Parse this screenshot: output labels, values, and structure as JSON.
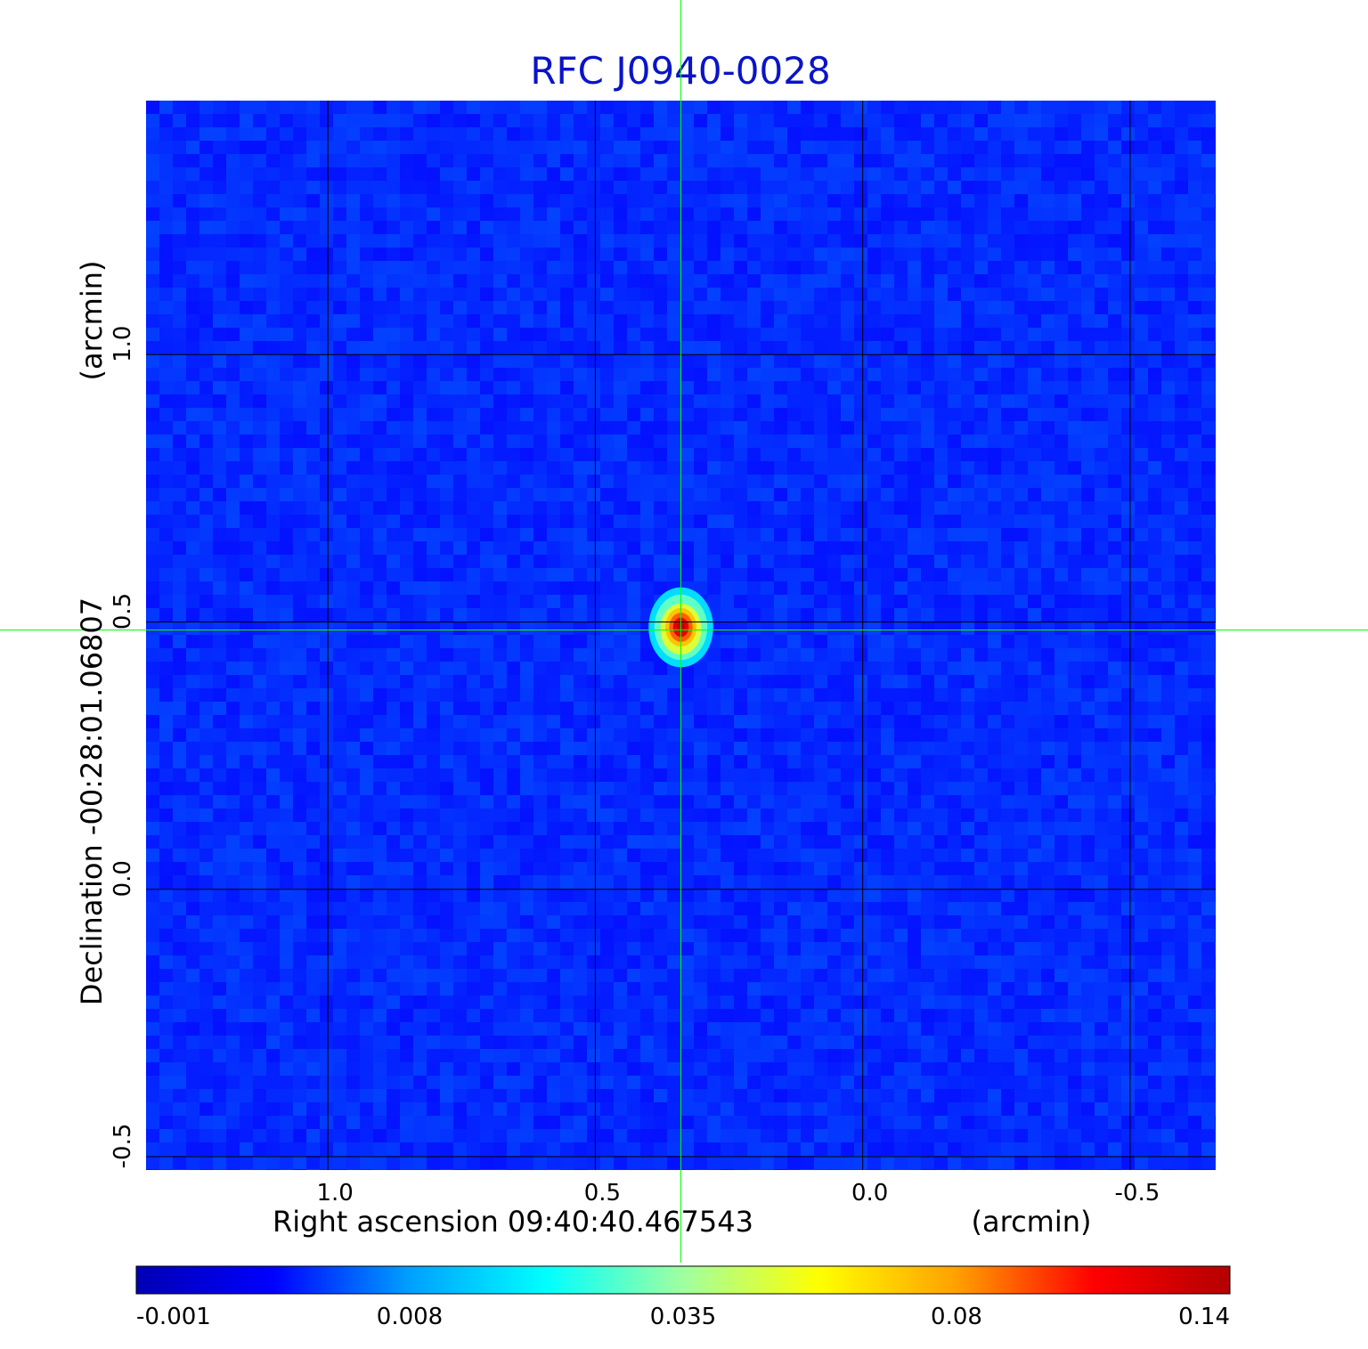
{
  "chart_data": {
    "type": "heatmap",
    "title": "RFC J0940-0028",
    "title_color": "#0a14c8",
    "x_axis": {
      "label": "Right ascension  09:40:40.467543",
      "unit": "(arcmin)",
      "ticks": [
        "1.0",
        "0.5",
        "0.0",
        "-0.5"
      ],
      "tick_values": [
        1.0,
        0.5,
        0.0,
        -0.5
      ],
      "range": [
        1.34,
        -0.66
      ],
      "direction": "decreasing"
    },
    "y_axis": {
      "label": "Declination  -00:28:01.06807",
      "unit": "(arcmin)",
      "ticks": [
        "1.0",
        "0.5",
        "0.0",
        "-0.5"
      ],
      "tick_values": [
        1.0,
        0.5,
        0.0,
        -0.5
      ],
      "range": [
        -0.525,
        1.475
      ]
    },
    "grid": true,
    "grid_color": "#000000",
    "crosshair": {
      "x": 0.34,
      "y": 0.485,
      "color": "#00ff00"
    },
    "source": {
      "x": 0.34,
      "y": 0.49,
      "peak": 0.14
    },
    "background_level": 0.0,
    "colormap": "jet",
    "colorbar": {
      "orientation": "horizontal",
      "ticks": [
        "-0.001",
        "0.008",
        "0.035",
        "0.08",
        "0.14"
      ],
      "tick_values": [
        -0.001,
        0.008,
        0.035,
        0.08,
        0.14
      ],
      "stops": [
        "#0000b4",
        "#0000ff",
        "#00a0ff",
        "#00ffff",
        "#a0ffa0",
        "#ffff00",
        "#ffa000",
        "#ff0000",
        "#b40000"
      ]
    }
  }
}
